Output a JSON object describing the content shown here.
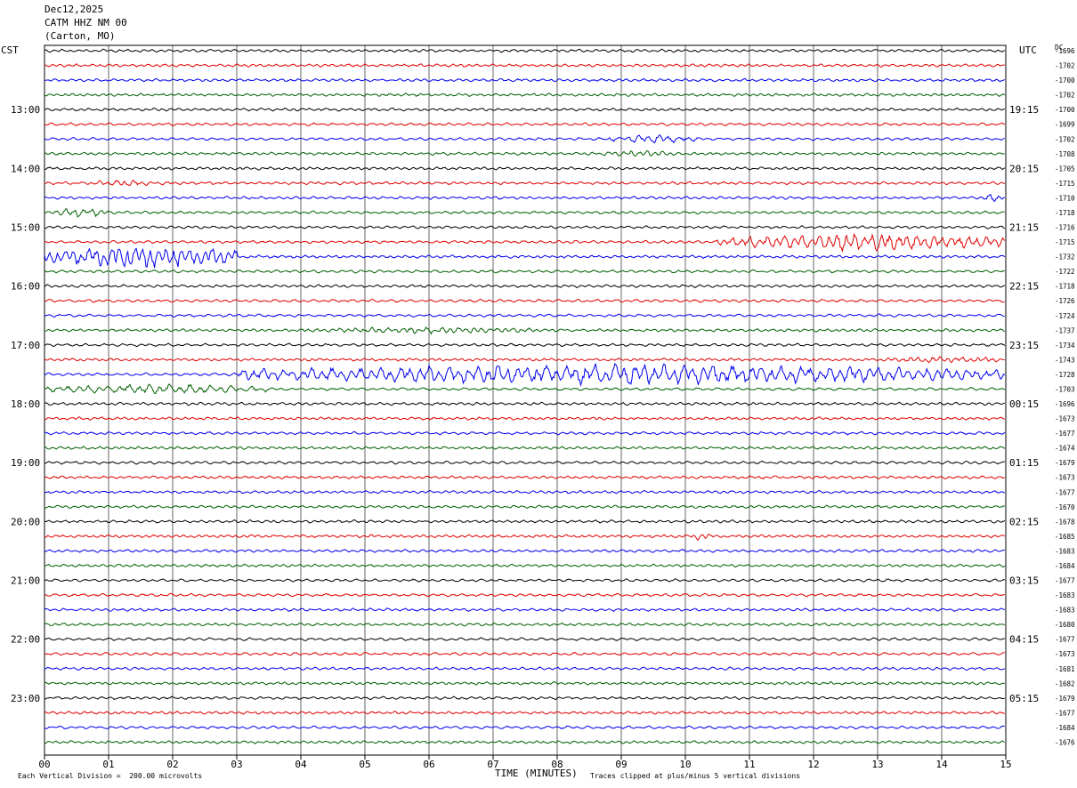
{
  "header": {
    "date": "Dec12,2025",
    "station": "CATM HHZ NM 00",
    "location": "(Carton, MO)"
  },
  "left_axis_label": "CST",
  "right_axis_label": "UTC",
  "corner_label": "DC",
  "footer": {
    "scale_note": "Each Vertical Division =  200.00 microvolts",
    "axis_title": "TIME (MINUTES)",
    "clip_note": "Traces clipped at plus/minus 5 vertical divisions"
  },
  "colors": {
    "cycle": [
      "#000000",
      "#e00000",
      "#0000ee",
      "#006000"
    ],
    "grid": "#000000"
  },
  "chart_data": {
    "type": "line",
    "x_ticks": [
      "00",
      "01",
      "02",
      "03",
      "04",
      "05",
      "06",
      "07",
      "08",
      "09",
      "10",
      "11",
      "12",
      "13",
      "14",
      "15"
    ],
    "xlim": [
      0,
      15
    ],
    "left_hour_labels": [
      "13:00",
      "14:00",
      "15:00",
      "16:00",
      "17:00",
      "18:00",
      "19:00",
      "20:00",
      "21:00",
      "22:00",
      "23:00"
    ],
    "right_hour_labels": [
      "19:15",
      "20:15",
      "21:15",
      "22:15",
      "23:15",
      "00:15",
      "01:15",
      "02:15",
      "03:15",
      "04:15",
      "05:15"
    ],
    "dc_offsets": [
      "-1696",
      "-1702",
      "-1700",
      "-1702",
      "-1700",
      "-1699",
      "-1702",
      "-1708",
      "-1705",
      "-1715",
      "-1710",
      "-1718",
      "-1716",
      "-1715",
      "-1732",
      "-1722",
      "-1718",
      "-1726",
      "-1724",
      "-1737",
      "-1734",
      "-1743",
      "-1728",
      "-1703",
      "-1696",
      "-1673",
      "-1677",
      "-1674",
      "-1679",
      "-1673",
      "-1677",
      "-1670",
      "-1678",
      "-1685",
      "-1683",
      "-1684",
      "-1677",
      "-1683",
      "-1683",
      "-1680",
      "-1677",
      "-1673",
      "-1681",
      "-1682",
      "-1679",
      "-1677",
      "-1684",
      "-1676"
    ],
    "row_count": 48,
    "amplitude_scale": 1.0,
    "events": [
      {
        "row": 6,
        "start": 8.8,
        "end": 10.2,
        "amp": 2.5
      },
      {
        "row": 7,
        "start": 8.7,
        "end": 9.9,
        "amp": 2.0
      },
      {
        "row": 9,
        "start": 0.6,
        "end": 2.0,
        "amp": 1.8
      },
      {
        "row": 10,
        "start": 14.6,
        "end": 15.0,
        "amp": 2.5
      },
      {
        "row": 11,
        "start": 0.1,
        "end": 1.0,
        "amp": 3.0
      },
      {
        "row": 13,
        "start": 10.5,
        "end": 15.0,
        "amp": 5.0
      },
      {
        "row": 14,
        "start": 0.0,
        "end": 3.0,
        "amp": 7.0
      },
      {
        "row": 19,
        "start": 4.0,
        "end": 8.0,
        "amp": 2.0
      },
      {
        "row": 21,
        "start": 13.0,
        "end": 15.0,
        "amp": 2.0
      },
      {
        "row": 22,
        "start": 3.0,
        "end": 15.0,
        "amp": 6.0
      },
      {
        "row": 23,
        "start": 0.0,
        "end": 3.5,
        "amp": 3.0
      },
      {
        "row": 33,
        "start": 10.1,
        "end": 10.4,
        "amp": 2.5
      }
    ]
  }
}
